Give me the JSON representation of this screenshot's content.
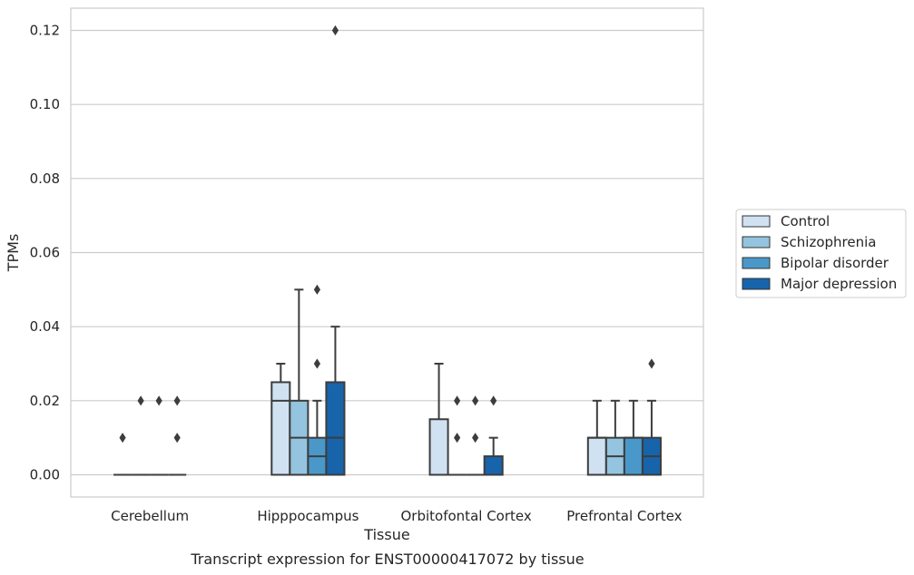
{
  "chart_data": {
    "type": "box",
    "title": "",
    "caption": "Transcript expression for ENST00000417072 by tissue",
    "xlabel": "Tissue",
    "ylabel": "TPMs",
    "ylim": [
      -0.006,
      0.126
    ],
    "yticks": [
      "0.00",
      "0.02",
      "0.04",
      "0.06",
      "0.08",
      "0.10",
      "0.12"
    ],
    "grid": "horizontal",
    "legend_position": "outside-right",
    "categories": [
      "Cerebellum",
      "Hipppocampus",
      "Orbitofontal Cortex",
      "Prefrontal Cortex"
    ],
    "series": [
      {
        "name": "Control",
        "color": "#d0e1f2",
        "boxes": [
          {
            "q1": 0.0,
            "median": 0.0,
            "q3": 0.0,
            "whisker_low": 0.0,
            "whisker_high": 0.0,
            "outliers": [
              0.01
            ]
          },
          {
            "q1": 0.0,
            "median": 0.02,
            "q3": 0.025,
            "whisker_low": 0.0,
            "whisker_high": 0.03,
            "outliers": []
          },
          {
            "q1": 0.0,
            "median": 0.0,
            "q3": 0.015,
            "whisker_low": 0.0,
            "whisker_high": 0.03,
            "outliers": []
          },
          {
            "q1": 0.0,
            "median": 0.01,
            "q3": 0.01,
            "whisker_low": 0.0,
            "whisker_high": 0.02,
            "outliers": []
          }
        ]
      },
      {
        "name": "Schizophrenia",
        "color": "#94c4df",
        "boxes": [
          {
            "q1": 0.0,
            "median": 0.0,
            "q3": 0.0,
            "whisker_low": 0.0,
            "whisker_high": 0.0,
            "outliers": [
              0.02
            ]
          },
          {
            "q1": 0.0,
            "median": 0.01,
            "q3": 0.02,
            "whisker_low": 0.0,
            "whisker_high": 0.05,
            "outliers": []
          },
          {
            "q1": 0.0,
            "median": 0.0,
            "q3": 0.0,
            "whisker_low": 0.0,
            "whisker_high": 0.0,
            "outliers": [
              0.01,
              0.02
            ]
          },
          {
            "q1": 0.0,
            "median": 0.005,
            "q3": 0.01,
            "whisker_low": 0.0,
            "whisker_high": 0.02,
            "outliers": []
          }
        ]
      },
      {
        "name": "Bipolar disorder",
        "color": "#4a98c9",
        "boxes": [
          {
            "q1": 0.0,
            "median": 0.0,
            "q3": 0.0,
            "whisker_low": 0.0,
            "whisker_high": 0.0,
            "outliers": [
              0.02
            ]
          },
          {
            "q1": 0.0,
            "median": 0.005,
            "q3": 0.01,
            "whisker_low": 0.0,
            "whisker_high": 0.02,
            "outliers": [
              0.03,
              0.05
            ]
          },
          {
            "q1": 0.0,
            "median": 0.0,
            "q3": 0.0,
            "whisker_low": 0.0,
            "whisker_high": 0.0,
            "outliers": [
              0.01,
              0.02
            ]
          },
          {
            "q1": 0.0,
            "median": 0.01,
            "q3": 0.01,
            "whisker_low": 0.0,
            "whisker_high": 0.02,
            "outliers": []
          }
        ]
      },
      {
        "name": "Major depression",
        "color": "#1764ab",
        "boxes": [
          {
            "q1": 0.0,
            "median": 0.0,
            "q3": 0.0,
            "whisker_low": 0.0,
            "whisker_high": 0.0,
            "outliers": [
              0.01,
              0.02
            ]
          },
          {
            "q1": 0.0,
            "median": 0.01,
            "q3": 0.025,
            "whisker_low": 0.0,
            "whisker_high": 0.04,
            "outliers": [
              0.12
            ]
          },
          {
            "q1": 0.0,
            "median": 0.0,
            "q3": 0.005,
            "whisker_low": 0.0,
            "whisker_high": 0.01,
            "outliers": [
              0.02
            ]
          },
          {
            "q1": 0.0,
            "median": 0.005,
            "q3": 0.01,
            "whisker_low": 0.0,
            "whisker_high": 0.02,
            "outliers": [
              0.03
            ]
          }
        ]
      }
    ]
  }
}
